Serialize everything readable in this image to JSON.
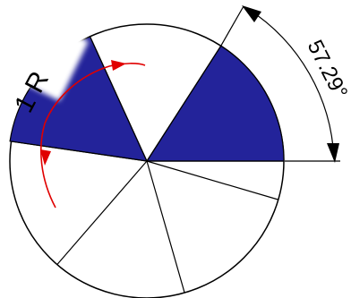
{
  "diagram": {
    "radius_label": "1 R",
    "angle_label": "57.29°",
    "sector_count": 6,
    "highlighted_sectors": [
      1,
      2
    ],
    "colors": {
      "fill": "#23239a",
      "stroke": "#000000",
      "arrow": "#e00000",
      "background": "#ffffff"
    }
  }
}
